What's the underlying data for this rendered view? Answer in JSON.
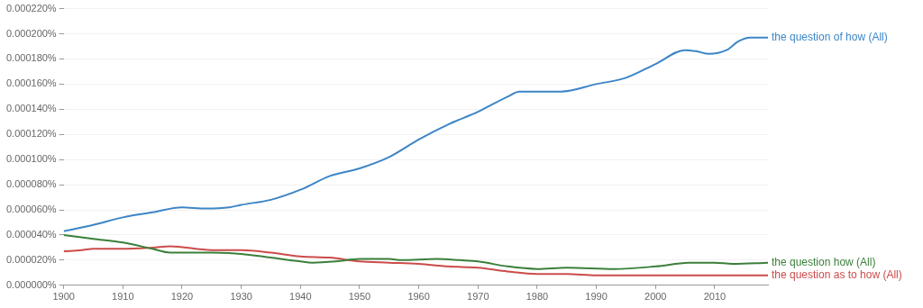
{
  "chart_data": {
    "type": "line",
    "xlim": [
      1900,
      2019
    ],
    "xticks": [
      1900,
      1910,
      1920,
      1930,
      1940,
      1950,
      1960,
      1970,
      1980,
      1990,
      2000,
      2010
    ],
    "ylim": [
      0,
      0.00022
    ],
    "yticks": [
      {
        "value": 0,
        "label": "0.000000%"
      },
      {
        "value": 2e-05,
        "label": "0.000020%"
      },
      {
        "value": 4e-05,
        "label": "0.000040%"
      },
      {
        "value": 6e-05,
        "label": "0.000060%"
      },
      {
        "value": 8e-05,
        "label": "0.000080%"
      },
      {
        "value": 0.0001,
        "label": "0.000100%"
      },
      {
        "value": 0.00012,
        "label": "0.000120%"
      },
      {
        "value": 0.00014,
        "label": "0.000140%"
      },
      {
        "value": 0.00016,
        "label": "0.000160%"
      },
      {
        "value": 0.00018,
        "label": "0.000180%"
      },
      {
        "value": 0.0002,
        "label": "0.000200%"
      },
      {
        "value": 0.00022,
        "label": "0.000220%"
      }
    ],
    "grid": "y",
    "legend": false,
    "marker": "none",
    "line_style": "solid",
    "series": [
      {
        "name": "the question of how (All)",
        "color": "#3d85c6",
        "x": [
          1900,
          1905,
          1910,
          1915,
          1920,
          1924,
          1928,
          1930,
          1935,
          1940,
          1945,
          1950,
          1955,
          1960,
          1965,
          1970,
          1975,
          1977,
          1980,
          1984,
          1990,
          1995,
          2000,
          2005,
          2007,
          2009,
          2012,
          2014,
          2016,
          2019
        ],
        "values": [
          4.3e-05,
          4.8e-05,
          5.4e-05,
          5.8e-05,
          6.2e-05,
          6.1e-05,
          6.2e-05,
          6.4e-05,
          6.8e-05,
          7.6e-05,
          8.7e-05,
          9.3e-05,
          0.000102,
          0.000116,
          0.000128,
          0.000138,
          0.00015,
          0.000154,
          0.000154,
          0.000154,
          0.00016,
          0.000165,
          0.000176,
          0.000187,
          0.000186,
          0.000184,
          0.000187,
          0.000194,
          0.000197,
          0.000197
        ]
      },
      {
        "name": "the question how (All)",
        "color": "#3b7f3b",
        "x": [
          1900,
          1905,
          1910,
          1915,
          1918,
          1925,
          1930,
          1935,
          1940,
          1942,
          1946,
          1950,
          1955,
          1957,
          1963,
          1967,
          1970,
          1975,
          1980,
          1985,
          1993,
          2000,
          2006,
          2010,
          2013,
          2019
        ],
        "values": [
          4e-05,
          3.7e-05,
          3.4e-05,
          2.9e-05,
          2.6e-05,
          2.6e-05,
          2.5e-05,
          2.2e-05,
          1.9e-05,
          1.8e-05,
          1.9e-05,
          2.1e-05,
          2.1e-05,
          2e-05,
          2.1e-05,
          2e-05,
          1.9e-05,
          1.5e-05,
          1.3e-05,
          1.4e-05,
          1.3e-05,
          1.5e-05,
          1.8e-05,
          1.8e-05,
          1.7e-05,
          1.8e-05
        ]
      },
      {
        "name": "the question as to how (All)",
        "color": "#cc4b4b",
        "x": [
          1900,
          1903,
          1905,
          1910,
          1915,
          1918,
          1925,
          1930,
          1935,
          1940,
          1945,
          1950,
          1955,
          1960,
          1965,
          1970,
          1975,
          1980,
          1985,
          1990,
          1995,
          2000,
          2005,
          2010,
          2015,
          2019
        ],
        "values": [
          2.7e-05,
          2.8e-05,
          2.9e-05,
          2.9e-05,
          3e-05,
          3.1e-05,
          2.8e-05,
          2.8e-05,
          2.6e-05,
          2.3e-05,
          2.2e-05,
          1.9e-05,
          1.8e-05,
          1.7e-05,
          1.5e-05,
          1.4e-05,
          1.1e-05,
          9e-06,
          9e-06,
          8e-06,
          8e-06,
          8e-06,
          8e-06,
          8e-06,
          8e-06,
          8e-06
        ]
      }
    ]
  }
}
